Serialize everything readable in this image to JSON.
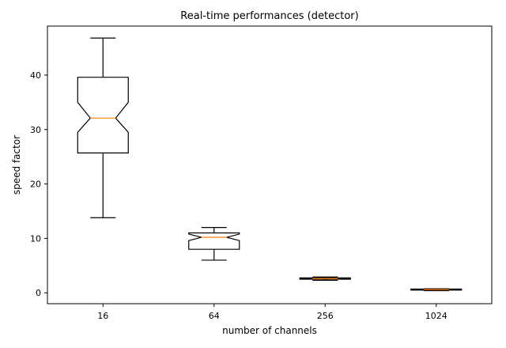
{
  "chart_data": {
    "type": "boxplot",
    "title": "Real-time performances (detector)",
    "xlabel": "number of channels",
    "ylabel": "speed factor",
    "ylim": [
      -2,
      49
    ],
    "yticks": [
      0,
      10,
      20,
      30,
      40
    ],
    "grid": false,
    "notched": true,
    "categories": [
      "16",
      "64",
      "256",
      "1024"
    ],
    "boxes": [
      {
        "category": "16",
        "whisker_low": 13.8,
        "q1": 25.7,
        "notch_low": 29.5,
        "median": 32.1,
        "notch_high": 35.0,
        "q3": 39.6,
        "whisker_high": 46.8
      },
      {
        "category": "64",
        "whisker_low": 6.0,
        "q1": 8.0,
        "notch_low": 9.6,
        "median": 10.2,
        "notch_high": 10.8,
        "q3": 11.0,
        "whisker_high": 12.0
      },
      {
        "category": "256",
        "whisker_low": 2.3,
        "q1": 2.5,
        "notch_low": 2.55,
        "median": 2.6,
        "notch_high": 2.65,
        "q3": 2.75,
        "whisker_high": 2.9
      },
      {
        "category": "1024",
        "whisker_low": 0.4,
        "q1": 0.5,
        "notch_low": 0.55,
        "median": 0.6,
        "notch_high": 0.65,
        "q3": 0.7,
        "whisker_high": 0.75
      }
    ],
    "colors": {
      "box": "#000000",
      "median": "#ff7f0e",
      "background": "#ffffff"
    }
  }
}
